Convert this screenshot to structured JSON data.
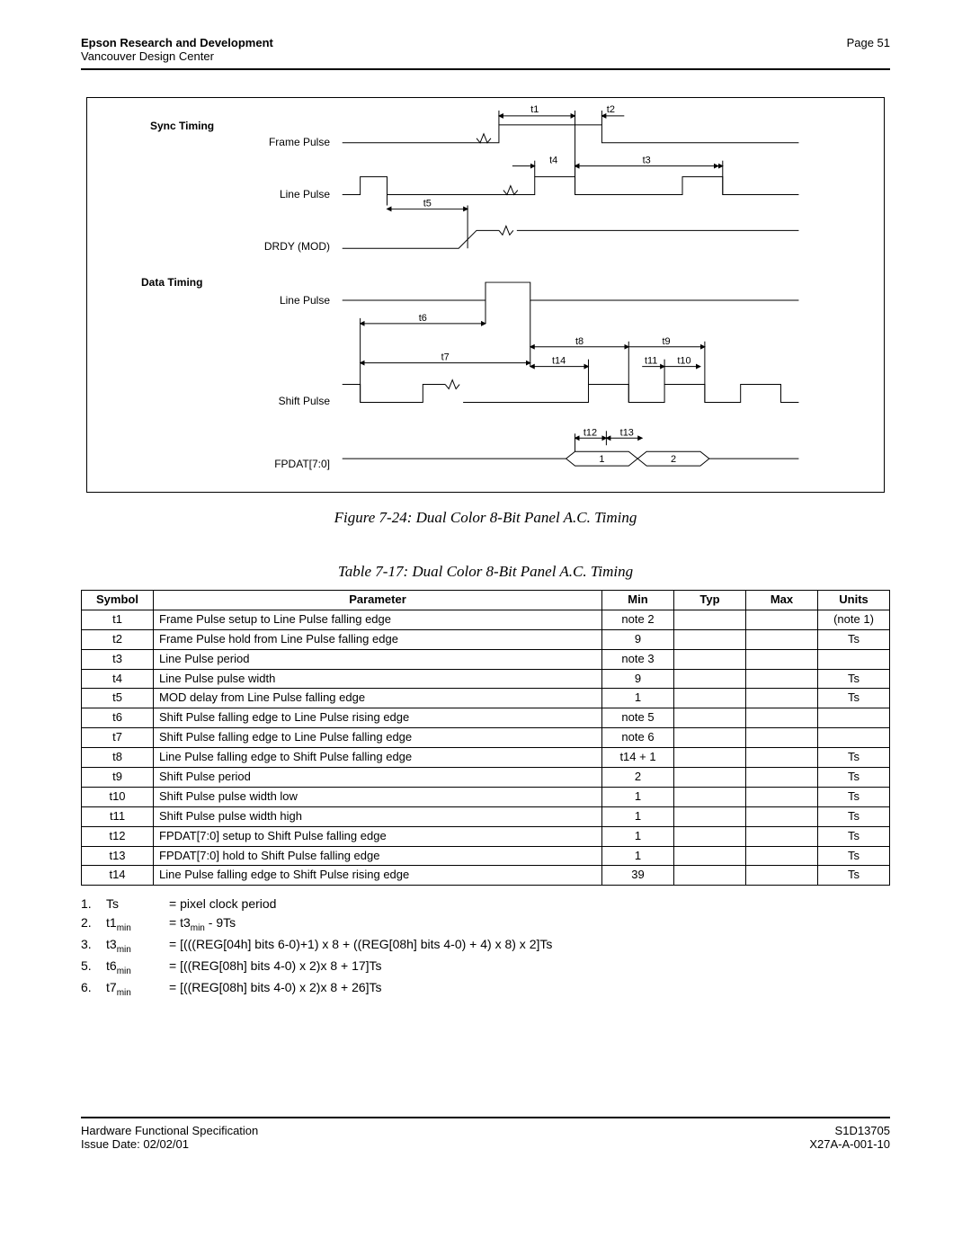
{
  "header": {
    "org": "Epson Research and Development",
    "sub": "Vancouver Design Center",
    "page": "Page 51"
  },
  "diagram": {
    "section1": "Sync Timing",
    "section2": "Data Timing",
    "signals": {
      "frame_pulse": "Frame Pulse",
      "line_pulse": "Line Pulse",
      "drdy": "DRDY (MOD)",
      "line_pulse2": "Line Pulse",
      "shift_pulse": "Shift Pulse",
      "fpdat": "FPDAT[7:0]"
    },
    "tlabels": {
      "t1": "t1",
      "t2": "t2",
      "t3": "t3",
      "t4": "t4",
      "t5": "t5",
      "t6": "t6",
      "t7": "t7",
      "t8": "t8",
      "t9": "t9",
      "t10": "t10",
      "t11": "t11",
      "t12": "t12",
      "t13": "t13",
      "t14": "t14"
    },
    "data_vals": {
      "d1": "1",
      "d2": "2"
    }
  },
  "figure_caption": "Figure 7-24: Dual Color 8-Bit Panel A.C. Timing",
  "table_caption": "Table 7-17: Dual Color 8-Bit Panel A.C. Timing",
  "table": {
    "headers": {
      "symbol": "Symbol",
      "parameter": "Parameter",
      "min": "Min",
      "typ": "Typ",
      "max": "Max",
      "units": "Units"
    },
    "rows": [
      {
        "sym": "t1",
        "param": "Frame Pulse setup to Line Pulse falling edge",
        "min": "note 2",
        "typ": "",
        "max": "",
        "units": "(note 1)"
      },
      {
        "sym": "t2",
        "param": "Frame Pulse hold from Line Pulse falling edge",
        "min": "9",
        "typ": "",
        "max": "",
        "units": "Ts"
      },
      {
        "sym": "t3",
        "param": "Line Pulse period",
        "min": "note 3",
        "typ": "",
        "max": "",
        "units": ""
      },
      {
        "sym": "t4",
        "param": "Line Pulse pulse width",
        "min": "9",
        "typ": "",
        "max": "",
        "units": "Ts"
      },
      {
        "sym": "t5",
        "param": "MOD delay from Line Pulse falling edge",
        "min": "1",
        "typ": "",
        "max": "",
        "units": "Ts"
      },
      {
        "sym": "t6",
        "param": "Shift Pulse falling edge to Line Pulse rising edge",
        "min": "note 5",
        "typ": "",
        "max": "",
        "units": ""
      },
      {
        "sym": "t7",
        "param": "Shift Pulse falling edge to Line Pulse falling edge",
        "min": "note 6",
        "typ": "",
        "max": "",
        "units": ""
      },
      {
        "sym": "t8",
        "param": "Line Pulse falling edge to Shift Pulse falling edge",
        "min": "t14 + 1",
        "typ": "",
        "max": "",
        "units": "Ts"
      },
      {
        "sym": "t9",
        "param": "Shift Pulse period",
        "min": "2",
        "typ": "",
        "max": "",
        "units": "Ts"
      },
      {
        "sym": "t10",
        "param": "Shift Pulse pulse width low",
        "min": "1",
        "typ": "",
        "max": "",
        "units": "Ts"
      },
      {
        "sym": "t11",
        "param": "Shift Pulse pulse width high",
        "min": "1",
        "typ": "",
        "max": "",
        "units": "Ts"
      },
      {
        "sym": "t12",
        "param": "FPDAT[7:0] setup to Shift Pulse falling edge",
        "min": "1",
        "typ": "",
        "max": "",
        "units": "Ts"
      },
      {
        "sym": "t13",
        "param": "FPDAT[7:0] hold to Shift Pulse falling edge",
        "min": "1",
        "typ": "",
        "max": "",
        "units": "Ts"
      },
      {
        "sym": "t14",
        "param": "Line Pulse falling edge to Shift Pulse rising edge",
        "min": "39",
        "typ": "",
        "max": "",
        "units": "Ts"
      }
    ]
  },
  "notes": [
    {
      "n": "1.",
      "sy": "Ts",
      "sub": "",
      "eq": "= pixel clock period"
    },
    {
      "n": "2.",
      "sy": "t1",
      "sub": "min",
      "eq": "= t3<sub>min</sub> - 9Ts"
    },
    {
      "n": "3.",
      "sy": "t3",
      "sub": "min",
      "eq": "= [(((REG[04h] bits 6-0)+1) x 8 + ((REG[08h] bits 4-0) + 4) x 8) x 2]Ts"
    },
    {
      "n": "5.",
      "sy": "t6",
      "sub": "min",
      "eq": "= [((REG[08h] bits 4-0) x 2)x 8 + 17]Ts"
    },
    {
      "n": "6.",
      "sy": "t7",
      "sub": "min",
      "eq": "= [((REG[08h] bits 4-0) x 2)x 8 + 26]Ts"
    }
  ],
  "footer": {
    "left1": "Hardware Functional Specification",
    "left2": "Issue Date: 02/02/01",
    "right1": "S1D13705",
    "right2": "X27A-A-001-10"
  },
  "style": {
    "stroke": "#000000",
    "stroke_width": 1,
    "font": "Arial"
  }
}
